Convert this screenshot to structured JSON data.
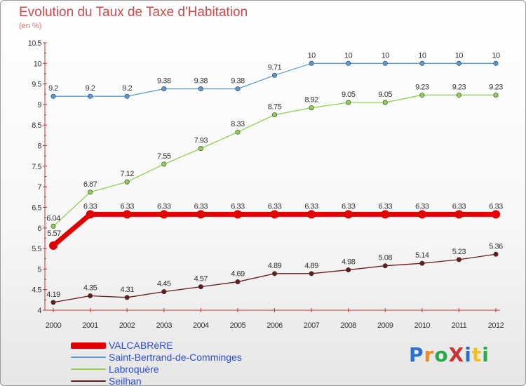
{
  "header": {
    "title": "Evolution du Taux de Taxe d'Habitation",
    "subtitle": "(en %)"
  },
  "logo": {
    "text": "ProXiti",
    "letters": [
      {
        "ch": "P",
        "color": "#2a6fd0"
      },
      {
        "ch": "r",
        "color": "#f08c1a"
      },
      {
        "ch": "o",
        "color": "#2aa84a"
      },
      {
        "ch": "X",
        "color": "#d03030"
      },
      {
        "ch": "i",
        "color": "#2a6fd0"
      },
      {
        "ch": "t",
        "color": "#f0c020"
      },
      {
        "ch": "i",
        "color": "#2aa84a"
      }
    ]
  },
  "chart_data": {
    "type": "line",
    "title": "Evolution du Taux de Taxe d'Habitation",
    "ylabel": "(en %)",
    "xlabel": "",
    "x": [
      "2000",
      "2001",
      "2002",
      "2003",
      "2004",
      "2005",
      "2006",
      "2007",
      "2008",
      "2009",
      "2010",
      "2011",
      "2012"
    ],
    "ylim": [
      4,
      10.5
    ],
    "yticks": [
      "4",
      "4.5",
      "5",
      "5.5",
      "6",
      "6.5",
      "7",
      "7.5",
      "8",
      "8.5",
      "9",
      "9.5",
      "10",
      "10.5"
    ],
    "grid": false,
    "legend_position": "bottom-left",
    "series": [
      {
        "name": "VALCABRèRE",
        "color": "#e00000",
        "width": 7,
        "marker": 6,
        "values": [
          5.57,
          6.33,
          6.33,
          6.33,
          6.33,
          6.33,
          6.33,
          6.33,
          6.33,
          6.33,
          6.33,
          6.33,
          6.33
        ],
        "labels": [
          "5.57",
          "6.33",
          "6.33",
          "6.33",
          "6.33",
          "6.33",
          "6.33",
          "6.33",
          "6.33",
          "6.33",
          "6.33",
          "6.33",
          "6.33"
        ]
      },
      {
        "name": "Saint-Bertrand-de-Comminges",
        "color": "#5b9bd5",
        "width": 1.3,
        "marker": 3.2,
        "values": [
          9.2,
          9.2,
          9.2,
          9.38,
          9.38,
          9.38,
          9.71,
          10,
          10,
          10,
          10,
          10,
          10
        ],
        "labels": [
          "9.2",
          "9.2",
          "9.2",
          "9.38",
          "9.38",
          "9.38",
          "9.71",
          "10",
          "10",
          "10",
          "10",
          "10",
          "10"
        ]
      },
      {
        "name": "Labroquère",
        "color": "#8fd14f",
        "width": 1.3,
        "marker": 3.2,
        "values": [
          6.04,
          6.87,
          7.12,
          7.55,
          7.93,
          8.33,
          8.75,
          8.92,
          9.05,
          9.05,
          9.23,
          9.23,
          9.23
        ],
        "labels": [
          "6.04",
          "6.87",
          "7.12",
          "7.55",
          "7.93",
          "8.33",
          "8.75",
          "8.92",
          "9.05",
          "9.05",
          "9.23",
          "9.23",
          "9.23"
        ]
      },
      {
        "name": "Seilhan",
        "color": "#6b1a1a",
        "width": 1.3,
        "marker": 3.2,
        "values": [
          4.19,
          4.35,
          4.31,
          4.45,
          4.57,
          4.69,
          4.89,
          4.89,
          4.98,
          5.08,
          5.14,
          5.23,
          5.36
        ],
        "labels": [
          "4.19",
          "4.35",
          "4.31",
          "4.45",
          "4.57",
          "4.69",
          "4.89",
          "4.89",
          "4.98",
          "5.08",
          "5.14",
          "5.23",
          "5.36"
        ]
      }
    ]
  }
}
